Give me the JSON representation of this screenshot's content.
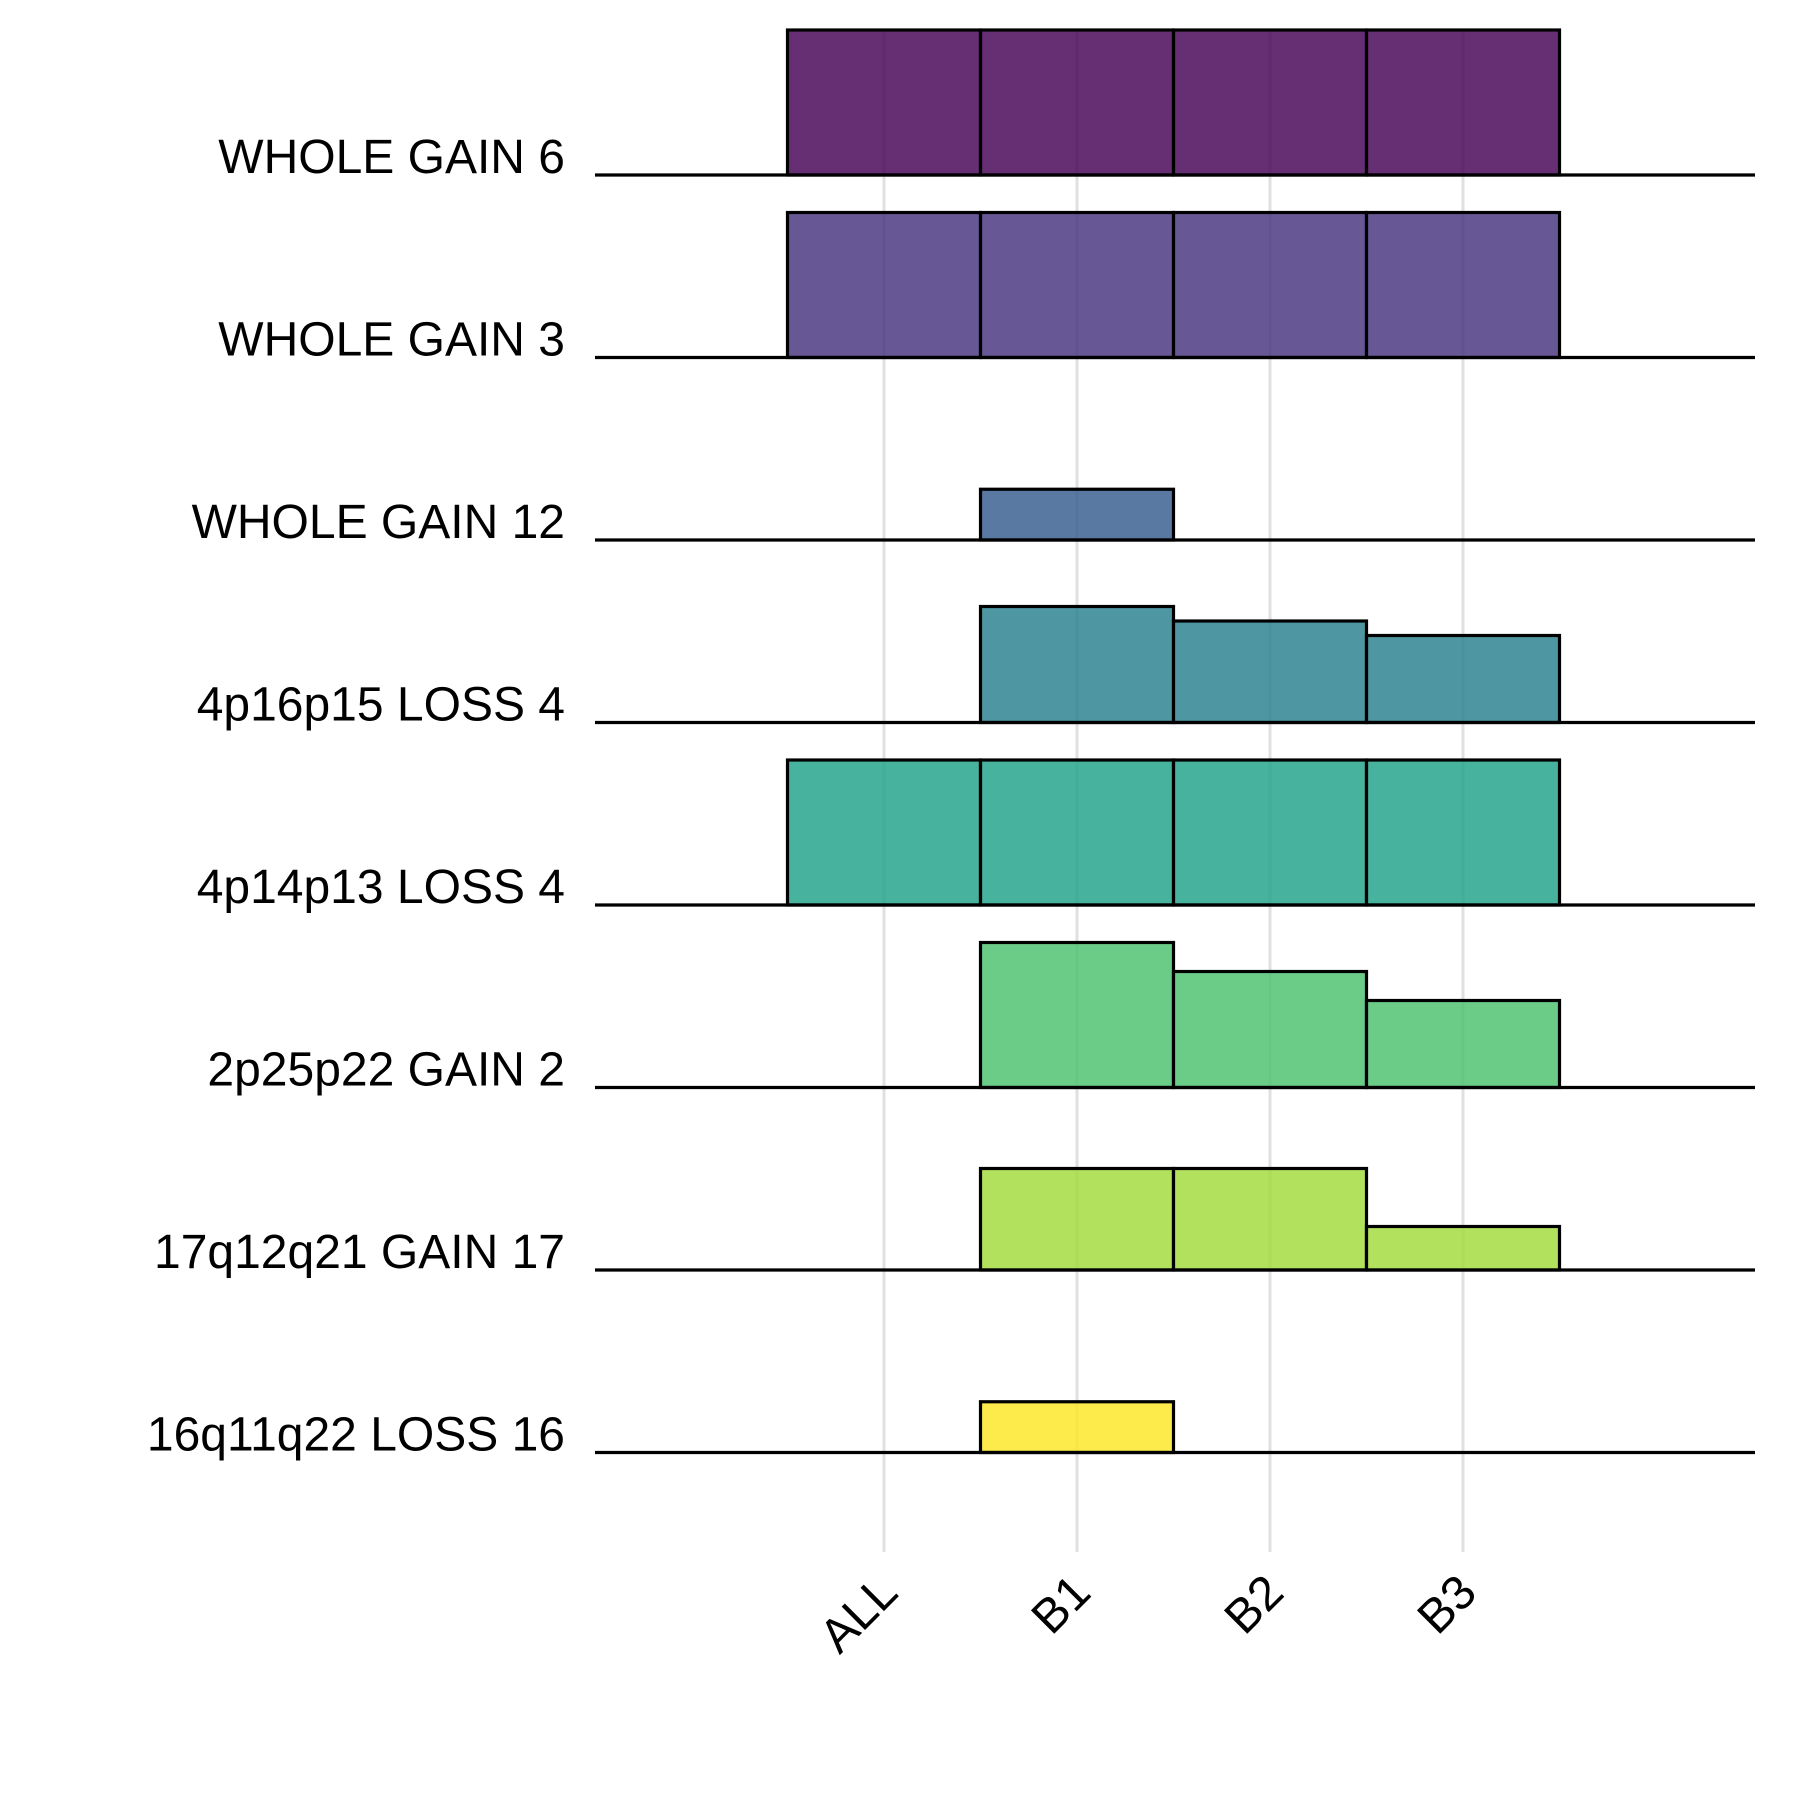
{
  "chart_data": {
    "type": "bar",
    "title": "",
    "xlabel": "",
    "ylabel": "",
    "categories": [
      "ALL",
      "B1",
      "B2",
      "B3"
    ],
    "ylim": [
      0,
      1
    ],
    "grid": "vertical major lines at category positions",
    "legend": "none",
    "series": [
      {
        "name": "WHOLE GAIN 6",
        "color": "#440154",
        "values": [
          1.0,
          1.0,
          1.0,
          1.0
        ]
      },
      {
        "name": "WHOLE GAIN 3",
        "color": "#46337e",
        "values": [
          1.0,
          1.0,
          1.0,
          1.0
        ]
      },
      {
        "name": "WHOLE GAIN 12",
        "color": "#365c8d",
        "values": [
          0.0,
          0.35,
          0.0,
          0.0
        ]
      },
      {
        "name": "4p16p15 LOSS 4",
        "color": "#277f8e",
        "values": [
          0.0,
          0.8,
          0.7,
          0.6
        ]
      },
      {
        "name": "4p14p13 LOSS 4",
        "color": "#1fa187",
        "values": [
          1.0,
          1.0,
          1.0,
          1.0
        ]
      },
      {
        "name": "2p25p22 GAIN 2",
        "color": "#4ac16d",
        "values": [
          0.0,
          1.0,
          0.8,
          0.6
        ]
      },
      {
        "name": "17q12q21 GAIN 17",
        "color": "#a0da39",
        "values": [
          0.0,
          0.7,
          0.7,
          0.3
        ]
      },
      {
        "name": "16q11q22 LOSS 16",
        "color": "#fde725",
        "values": [
          0.0,
          0.35,
          0.0,
          0.0
        ]
      }
    ]
  }
}
